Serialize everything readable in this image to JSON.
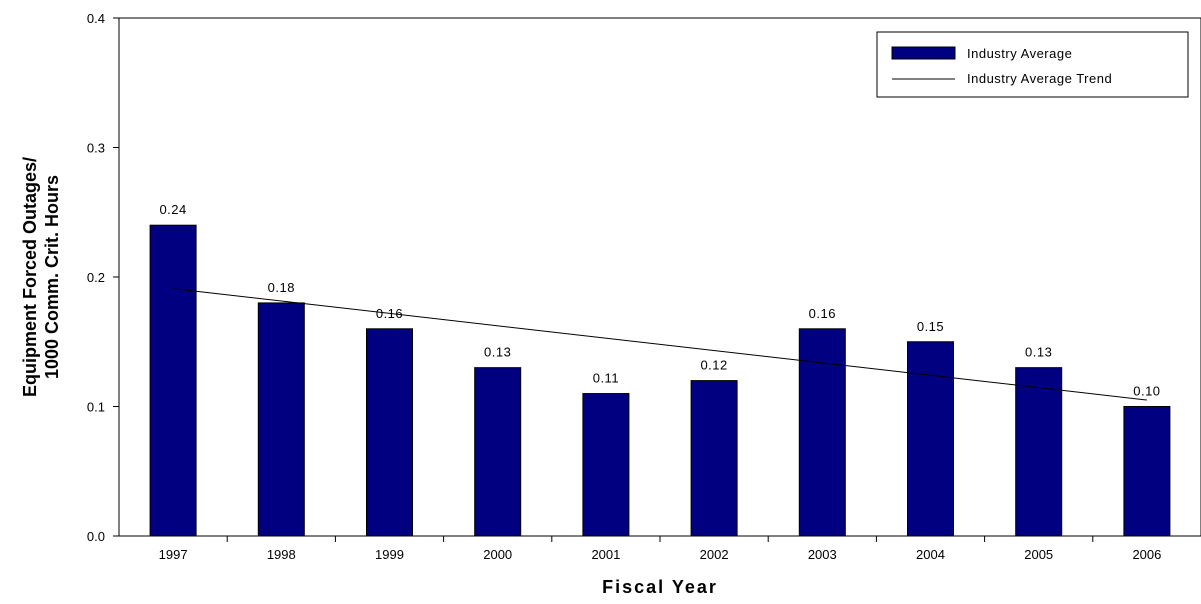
{
  "chart_data": {
    "type": "bar",
    "categories": [
      "1997",
      "1998",
      "1999",
      "2000",
      "2001",
      "2002",
      "2003",
      "2004",
      "2005",
      "2006"
    ],
    "series": [
      {
        "name": "Industry Average",
        "values": [
          0.24,
          0.18,
          0.16,
          0.13,
          0.11,
          0.12,
          0.16,
          0.15,
          0.13,
          0.1
        ],
        "labels": [
          "0.24",
          "0.18",
          "0.16",
          "0.13",
          "0.11",
          "0.12",
          "0.16",
          "0.15",
          "0.13",
          "0.10"
        ],
        "color": "#000080"
      }
    ],
    "trend": {
      "name": "Industry Average Trend",
      "start_value": 0.191,
      "end_value": 0.105,
      "color": "#000000"
    },
    "xlabel": "Fiscal Year",
    "ylabel_lines": [
      "Equipment Forced Outages/",
      "1000 Comm. Crit. Hours"
    ],
    "ylim": [
      0,
      0.4
    ],
    "yticks": [
      {
        "value": 0.0,
        "label": "0.0"
      },
      {
        "value": 0.1,
        "label": "0.1"
      },
      {
        "value": 0.2,
        "label": "0.2"
      },
      {
        "value": 0.3,
        "label": "0.3"
      },
      {
        "value": 0.4,
        "label": "0.4"
      }
    ],
    "grid": false,
    "legend_position": "top-right"
  }
}
